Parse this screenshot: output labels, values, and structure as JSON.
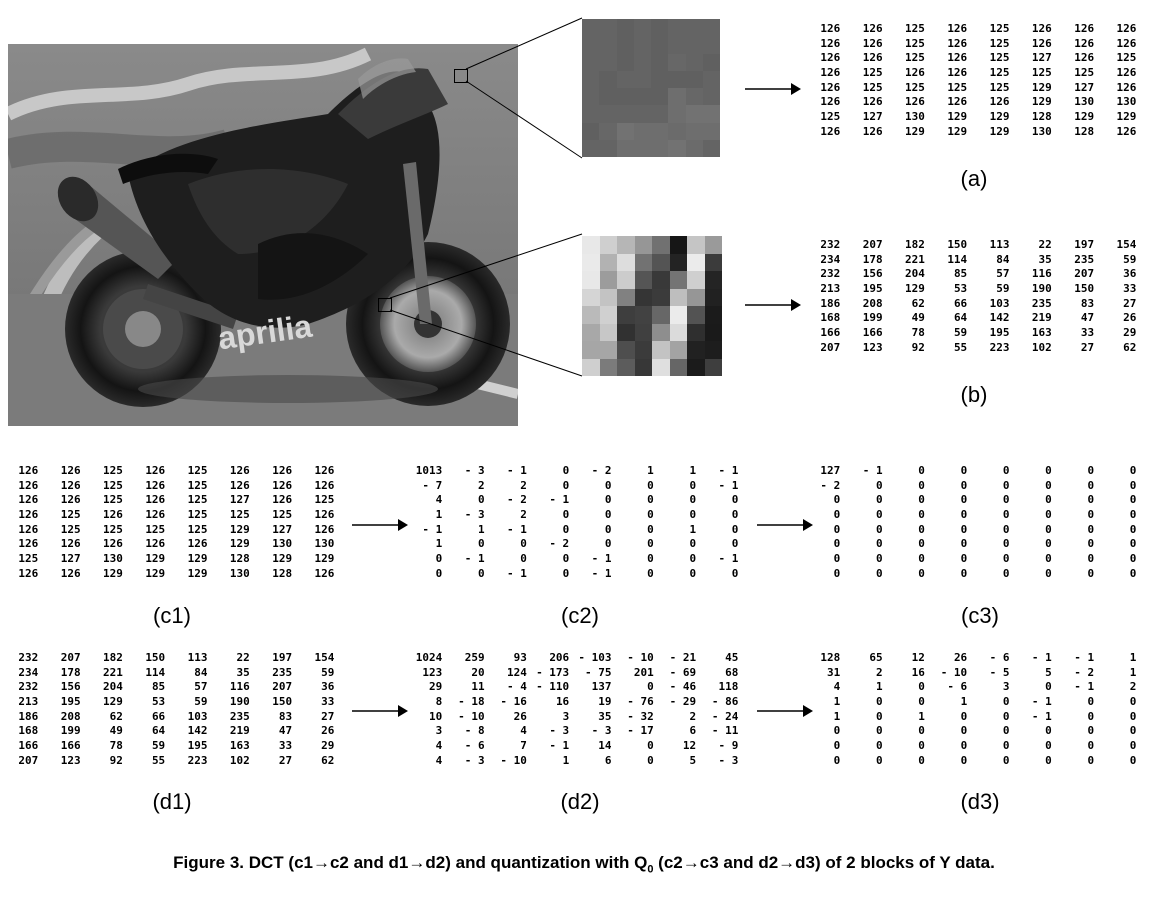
{
  "figure": {
    "caption_prefix": "Figure 3. DCT (c1→c2 and d1→d2) and quantization with Q",
    "caption_sub": "0",
    "caption_suffix": " (c2→c3 and d2→d3) of 2 blocks of Y data."
  },
  "photo": {
    "brand_text": "aprilia"
  },
  "zoom_blocks": {
    "a": [
      [
        126,
        126,
        125,
        126,
        125,
        126,
        126,
        126
      ],
      [
        126,
        126,
        125,
        126,
        125,
        126,
        126,
        126
      ],
      [
        126,
        126,
        125,
        126,
        125,
        127,
        126,
        125
      ],
      [
        126,
        125,
        126,
        126,
        125,
        125,
        125,
        126
      ],
      [
        126,
        125,
        125,
        125,
        125,
        129,
        127,
        126
      ],
      [
        126,
        126,
        126,
        126,
        126,
        129,
        130,
        130
      ],
      [
        125,
        127,
        130,
        129,
        129,
        128,
        129,
        129
      ],
      [
        126,
        126,
        129,
        129,
        129,
        130,
        128,
        126
      ]
    ],
    "b": [
      [
        232,
        207,
        182,
        150,
        113,
        22,
        197,
        154
      ],
      [
        234,
        178,
        221,
        114,
        84,
        35,
        235,
        59
      ],
      [
        232,
        156,
        204,
        85,
        57,
        116,
        207,
        36
      ],
      [
        213,
        195,
        129,
        53,
        59,
        190,
        150,
        33
      ],
      [
        186,
        208,
        62,
        66,
        103,
        235,
        83,
        27
      ],
      [
        168,
        199,
        49,
        64,
        142,
        219,
        47,
        26
      ],
      [
        166,
        166,
        78,
        59,
        195,
        163,
        33,
        29
      ],
      [
        207,
        123,
        92,
        55,
        223,
        102,
        27,
        62
      ]
    ]
  },
  "matrices": {
    "a": {
      "label": "(a)",
      "rows": [
        [
          "126",
          "126",
          "125",
          "126",
          "125",
          "126",
          "126",
          "126"
        ],
        [
          "126",
          "126",
          "125",
          "126",
          "125",
          "126",
          "126",
          "126"
        ],
        [
          "126",
          "126",
          "125",
          "126",
          "125",
          "127",
          "126",
          "125"
        ],
        [
          "126",
          "125",
          "126",
          "126",
          "125",
          "125",
          "125",
          "126"
        ],
        [
          "126",
          "125",
          "125",
          "125",
          "125",
          "129",
          "127",
          "126"
        ],
        [
          "126",
          "126",
          "126",
          "126",
          "126",
          "129",
          "130",
          "130"
        ],
        [
          "125",
          "127",
          "130",
          "129",
          "129",
          "128",
          "129",
          "129"
        ],
        [
          "126",
          "126",
          "129",
          "129",
          "129",
          "130",
          "128",
          "126"
        ]
      ]
    },
    "b": {
      "label": "(b)",
      "rows": [
        [
          "232",
          "207",
          "182",
          "150",
          "113",
          "22",
          "197",
          "154"
        ],
        [
          "234",
          "178",
          "221",
          "114",
          "84",
          "35",
          "235",
          "59"
        ],
        [
          "232",
          "156",
          "204",
          "85",
          "57",
          "116",
          "207",
          "36"
        ],
        [
          "213",
          "195",
          "129",
          "53",
          "59",
          "190",
          "150",
          "33"
        ],
        [
          "186",
          "208",
          "62",
          "66",
          "103",
          "235",
          "83",
          "27"
        ],
        [
          "168",
          "199",
          "49",
          "64",
          "142",
          "219",
          "47",
          "26"
        ],
        [
          "166",
          "166",
          "78",
          "59",
          "195",
          "163",
          "33",
          "29"
        ],
        [
          "207",
          "123",
          "92",
          "55",
          "223",
          "102",
          "27",
          "62"
        ]
      ]
    },
    "c1": {
      "label": "(c1)",
      "rows": [
        [
          "126",
          "126",
          "125",
          "126",
          "125",
          "126",
          "126",
          "126"
        ],
        [
          "126",
          "126",
          "125",
          "126",
          "125",
          "126",
          "126",
          "126"
        ],
        [
          "126",
          "126",
          "125",
          "126",
          "125",
          "127",
          "126",
          "125"
        ],
        [
          "126",
          "125",
          "126",
          "126",
          "125",
          "125",
          "125",
          "126"
        ],
        [
          "126",
          "125",
          "125",
          "125",
          "125",
          "129",
          "127",
          "126"
        ],
        [
          "126",
          "126",
          "126",
          "126",
          "126",
          "129",
          "130",
          "130"
        ],
        [
          "125",
          "127",
          "130",
          "129",
          "129",
          "128",
          "129",
          "129"
        ],
        [
          "126",
          "126",
          "129",
          "129",
          "129",
          "130",
          "128",
          "126"
        ]
      ]
    },
    "c2": {
      "label": "(c2)",
      "rows": [
        [
          "1013",
          "- 3",
          "- 1",
          "0",
          "- 2",
          "1",
          "1",
          "- 1"
        ],
        [
          "- 7",
          "2",
          "2",
          "0",
          "0",
          "0",
          "0",
          "- 1"
        ],
        [
          "4",
          "0",
          "- 2",
          "- 1",
          "0",
          "0",
          "0",
          "0"
        ],
        [
          "1",
          "- 3",
          "2",
          "0",
          "0",
          "0",
          "0",
          "0"
        ],
        [
          "- 1",
          "1",
          "- 1",
          "0",
          "0",
          "0",
          "1",
          "0"
        ],
        [
          "1",
          "0",
          "0",
          "- 2",
          "0",
          "0",
          "0",
          "0"
        ],
        [
          "0",
          "- 1",
          "0",
          "0",
          "- 1",
          "0",
          "0",
          "- 1"
        ],
        [
          "0",
          "0",
          "- 1",
          "0",
          "- 1",
          "0",
          "0",
          "0"
        ]
      ]
    },
    "c3": {
      "label": "(c3)",
      "rows": [
        [
          "127",
          "- 1",
          "0",
          "0",
          "0",
          "0",
          "0",
          "0"
        ],
        [
          "- 2",
          "0",
          "0",
          "0",
          "0",
          "0",
          "0",
          "0"
        ],
        [
          "0",
          "0",
          "0",
          "0",
          "0",
          "0",
          "0",
          "0"
        ],
        [
          "0",
          "0",
          "0",
          "0",
          "0",
          "0",
          "0",
          "0"
        ],
        [
          "0",
          "0",
          "0",
          "0",
          "0",
          "0",
          "0",
          "0"
        ],
        [
          "0",
          "0",
          "0",
          "0",
          "0",
          "0",
          "0",
          "0"
        ],
        [
          "0",
          "0",
          "0",
          "0",
          "0",
          "0",
          "0",
          "0"
        ],
        [
          "0",
          "0",
          "0",
          "0",
          "0",
          "0",
          "0",
          "0"
        ]
      ]
    },
    "d1": {
      "label": "(d1)",
      "rows": [
        [
          "232",
          "207",
          "182",
          "150",
          "113",
          "22",
          "197",
          "154"
        ],
        [
          "234",
          "178",
          "221",
          "114",
          "84",
          "35",
          "235",
          "59"
        ],
        [
          "232",
          "156",
          "204",
          "85",
          "57",
          "116",
          "207",
          "36"
        ],
        [
          "213",
          "195",
          "129",
          "53",
          "59",
          "190",
          "150",
          "33"
        ],
        [
          "186",
          "208",
          "62",
          "66",
          "103",
          "235",
          "83",
          "27"
        ],
        [
          "168",
          "199",
          "49",
          "64",
          "142",
          "219",
          "47",
          "26"
        ],
        [
          "166",
          "166",
          "78",
          "59",
          "195",
          "163",
          "33",
          "29"
        ],
        [
          "207",
          "123",
          "92",
          "55",
          "223",
          "102",
          "27",
          "62"
        ]
      ]
    },
    "d2": {
      "label": "(d2)",
      "rows": [
        [
          "1024",
          "259",
          "93",
          "206",
          "- 103",
          "- 10",
          "- 21",
          "45"
        ],
        [
          "123",
          "20",
          "124",
          "- 173",
          "- 75",
          "201",
          "- 69",
          "68"
        ],
        [
          "29",
          "11",
          "- 4",
          "- 110",
          "137",
          "0",
          "- 46",
          "118"
        ],
        [
          "8",
          "- 18",
          "- 16",
          "16",
          "19",
          "- 76",
          "- 29",
          "- 86"
        ],
        [
          "10",
          "- 10",
          "26",
          "3",
          "35",
          "- 32",
          "2",
          "- 24"
        ],
        [
          "3",
          "- 8",
          "4",
          "- 3",
          "- 3",
          "- 17",
          "6",
          "- 11"
        ],
        [
          "4",
          "- 6",
          "7",
          "- 1",
          "14",
          "0",
          "12",
          "- 9"
        ],
        [
          "4",
          "- 3",
          "- 10",
          "1",
          "6",
          "0",
          "5",
          "- 3"
        ]
      ]
    },
    "d3": {
      "label": "(d3)",
      "rows": [
        [
          "128",
          "65",
          "12",
          "26",
          "- 6",
          "- 1",
          "- 1",
          "1"
        ],
        [
          "31",
          "2",
          "16",
          "- 10",
          "- 5",
          "5",
          "- 2",
          "1"
        ],
        [
          "4",
          "1",
          "0",
          "- 6",
          "3",
          "0",
          "- 1",
          "2"
        ],
        [
          "1",
          "0",
          "0",
          "1",
          "0",
          "- 1",
          "0",
          "0"
        ],
        [
          "1",
          "0",
          "1",
          "0",
          "0",
          "- 1",
          "0",
          "0"
        ],
        [
          "0",
          "0",
          "0",
          "0",
          "0",
          "0",
          "0",
          "0"
        ],
        [
          "0",
          "0",
          "0",
          "0",
          "0",
          "0",
          "0",
          "0"
        ],
        [
          "0",
          "0",
          "0",
          "0",
          "0",
          "0",
          "0",
          "0"
        ]
      ]
    }
  }
}
